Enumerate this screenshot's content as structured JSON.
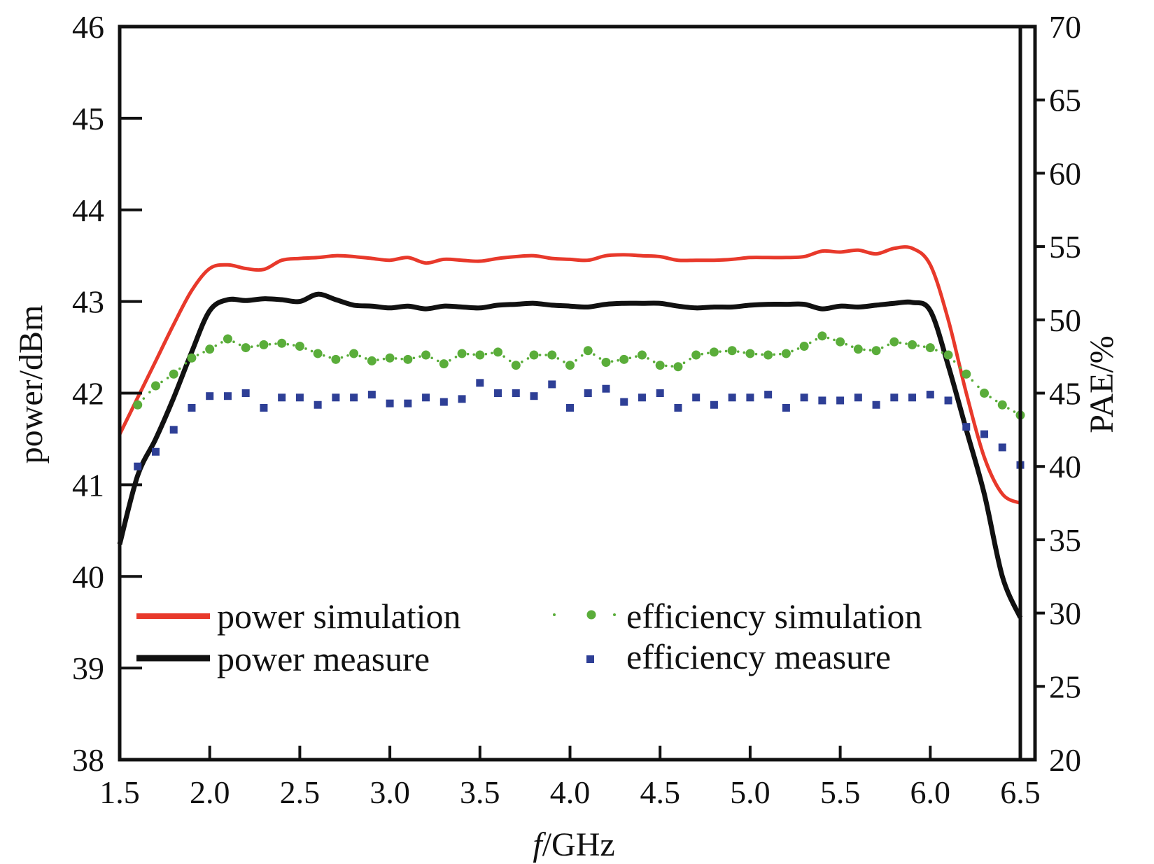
{
  "chart_data": {
    "type": "line",
    "title": "",
    "xlabel_italic": "f",
    "xlabel_rest": "/GHz",
    "ylabel": "power/dBm",
    "y2label": "PAE/%",
    "xlim": [
      1.5,
      6.5
    ],
    "ylim": [
      38,
      46
    ],
    "y2lim": [
      20,
      70
    ],
    "x_ticks": [
      "1.5",
      "2.0",
      "2.5",
      "3.0",
      "3.5",
      "4.0",
      "4.5",
      "5.0",
      "5.5",
      "6.0",
      "6.5"
    ],
    "y_ticks": [
      "38",
      "39",
      "40",
      "41",
      "42",
      "43",
      "44",
      "45",
      "46"
    ],
    "y2_ticks": [
      "20",
      "25",
      "30",
      "35",
      "40",
      "45",
      "50",
      "55",
      "60",
      "65",
      "70"
    ],
    "grid": false,
    "legend_placement": "bottom",
    "series": [
      {
        "name": "power simulation",
        "axis": "left",
        "style": "line",
        "color": "#e8392b",
        "x": [
          1.5,
          1.6,
          1.7,
          1.8,
          1.9,
          2.0,
          2.1,
          2.2,
          2.3,
          2.4,
          2.5,
          2.6,
          2.7,
          2.8,
          2.9,
          3.0,
          3.1,
          3.2,
          3.3,
          3.4,
          3.5,
          3.6,
          3.7,
          3.8,
          3.9,
          4.0,
          4.1,
          4.2,
          4.3,
          4.4,
          4.5,
          4.6,
          4.7,
          4.8,
          4.9,
          5.0,
          5.1,
          5.2,
          5.3,
          5.4,
          5.5,
          5.6,
          5.7,
          5.8,
          5.9,
          6.0,
          6.1,
          6.2,
          6.3,
          6.4,
          6.5
        ],
        "values": [
          41.55,
          41.95,
          42.35,
          42.75,
          43.12,
          43.36,
          43.4,
          43.36,
          43.35,
          43.45,
          43.47,
          43.48,
          43.5,
          43.49,
          43.47,
          43.45,
          43.48,
          43.42,
          43.46,
          43.45,
          43.44,
          43.47,
          43.49,
          43.5,
          43.47,
          43.46,
          43.45,
          43.5,
          43.51,
          43.5,
          43.49,
          43.45,
          43.45,
          43.45,
          43.46,
          43.48,
          43.48,
          43.48,
          43.49,
          43.55,
          43.54,
          43.56,
          43.52,
          43.58,
          43.58,
          43.4,
          42.8,
          42.0,
          41.3,
          40.9,
          40.8
        ]
      },
      {
        "name": "power measure",
        "axis": "left",
        "style": "line",
        "color": "#111111",
        "x": [
          1.5,
          1.6,
          1.7,
          1.8,
          1.9,
          2.0,
          2.1,
          2.2,
          2.3,
          2.4,
          2.5,
          2.6,
          2.7,
          2.8,
          2.9,
          3.0,
          3.1,
          3.2,
          3.3,
          3.4,
          3.5,
          3.6,
          3.7,
          3.8,
          3.9,
          4.0,
          4.1,
          4.2,
          4.3,
          4.4,
          4.5,
          4.6,
          4.7,
          4.8,
          4.9,
          5.0,
          5.1,
          5.2,
          5.3,
          5.4,
          5.5,
          5.6,
          5.7,
          5.8,
          5.9,
          6.0,
          6.1,
          6.2,
          6.3,
          6.4,
          6.5
        ],
        "values": [
          40.35,
          41.1,
          41.5,
          41.95,
          42.45,
          42.9,
          43.02,
          43.01,
          43.03,
          43.02,
          43.0,
          43.08,
          43.02,
          42.96,
          42.95,
          42.93,
          42.95,
          42.92,
          42.95,
          42.94,
          42.93,
          42.96,
          42.97,
          42.98,
          42.96,
          42.95,
          42.94,
          42.97,
          42.98,
          42.98,
          42.98,
          42.95,
          42.93,
          42.94,
          42.94,
          42.96,
          42.97,
          42.97,
          42.97,
          42.92,
          42.95,
          42.94,
          42.96,
          42.98,
          42.99,
          42.9,
          42.3,
          41.6,
          40.9,
          40.0,
          39.55
        ]
      },
      {
        "name": "efficiency simulation",
        "axis": "right",
        "style": "dotted-markers",
        "color": "#5aad3a",
        "x": [
          1.6,
          1.7,
          1.8,
          1.9,
          2.0,
          2.1,
          2.2,
          2.3,
          2.4,
          2.5,
          2.6,
          2.7,
          2.8,
          2.9,
          3.0,
          3.1,
          3.2,
          3.3,
          3.4,
          3.5,
          3.6,
          3.7,
          3.8,
          3.9,
          4.0,
          4.1,
          4.2,
          4.3,
          4.4,
          4.5,
          4.6,
          4.7,
          4.8,
          4.9,
          5.0,
          5.1,
          5.2,
          5.3,
          5.4,
          5.5,
          5.6,
          5.7,
          5.8,
          5.9,
          6.0,
          6.1,
          6.2,
          6.3,
          6.4,
          6.5
        ],
        "values": [
          44.2,
          45.5,
          46.3,
          47.4,
          48.0,
          48.7,
          48.1,
          48.3,
          48.4,
          48.2,
          47.7,
          47.3,
          47.7,
          47.2,
          47.4,
          47.3,
          47.6,
          47.0,
          47.7,
          47.6,
          47.8,
          46.9,
          47.6,
          47.6,
          46.9,
          47.9,
          47.1,
          47.3,
          47.6,
          46.9,
          46.8,
          47.6,
          47.8,
          47.9,
          47.7,
          47.6,
          47.7,
          48.2,
          48.9,
          48.5,
          48.0,
          47.9,
          48.5,
          48.3,
          48.1,
          47.6,
          46.3,
          45.0,
          44.2,
          43.5
        ]
      },
      {
        "name": "efficiency measure",
        "axis": "right",
        "style": "square-markers",
        "color": "#2e3f96",
        "x": [
          1.6,
          1.7,
          1.8,
          1.9,
          2.0,
          2.1,
          2.2,
          2.3,
          2.4,
          2.5,
          2.6,
          2.7,
          2.8,
          2.9,
          3.0,
          3.1,
          3.2,
          3.3,
          3.4,
          3.5,
          3.6,
          3.7,
          3.8,
          3.9,
          4.0,
          4.1,
          4.2,
          4.3,
          4.4,
          4.5,
          4.6,
          4.7,
          4.8,
          4.9,
          5.0,
          5.1,
          5.2,
          5.3,
          5.4,
          5.5,
          5.6,
          5.7,
          5.8,
          5.9,
          6.0,
          6.1,
          6.2,
          6.3,
          6.4,
          6.5
        ],
        "values": [
          40.0,
          41.0,
          42.5,
          44.0,
          44.8,
          44.8,
          45.0,
          44.0,
          44.7,
          44.7,
          44.2,
          44.7,
          44.7,
          44.9,
          44.3,
          44.3,
          44.7,
          44.4,
          44.6,
          45.7,
          45.0,
          45.0,
          44.8,
          45.6,
          44.0,
          45.0,
          45.3,
          44.4,
          44.7,
          45.0,
          44.0,
          44.7,
          44.2,
          44.7,
          44.7,
          44.9,
          44.0,
          44.7,
          44.5,
          44.5,
          44.7,
          44.2,
          44.7,
          44.7,
          44.9,
          44.5,
          42.7,
          42.2,
          41.3,
          40.1
        ]
      }
    ]
  }
}
